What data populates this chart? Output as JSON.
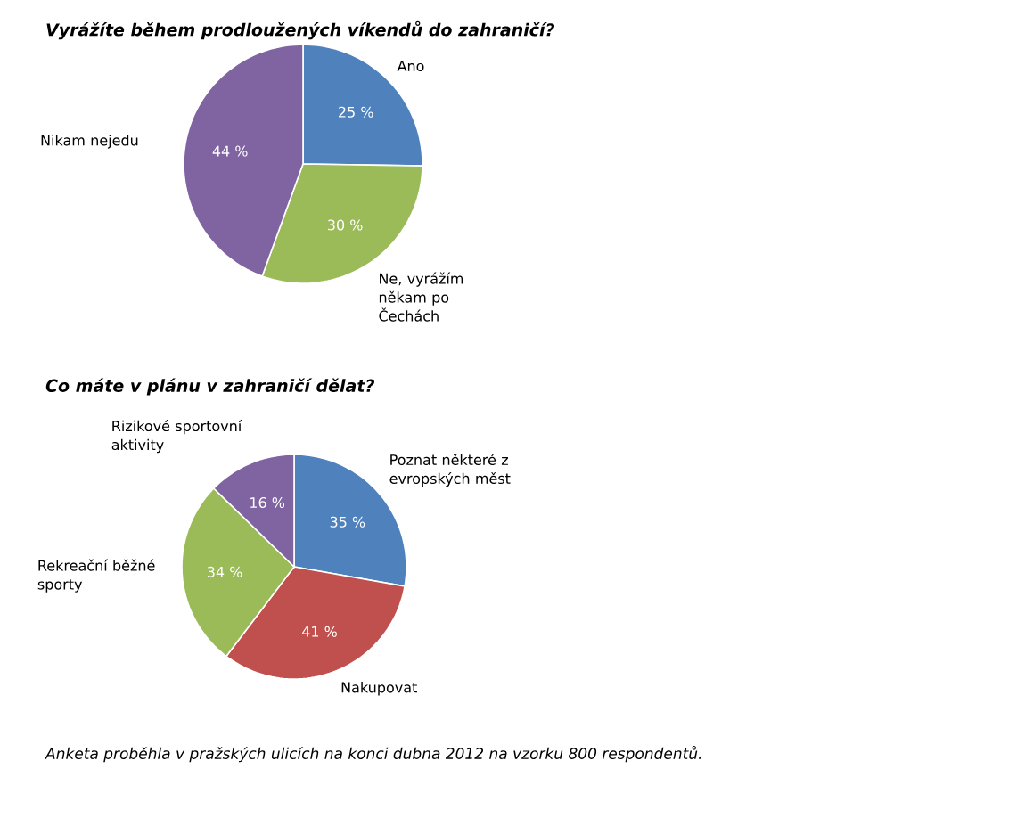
{
  "chart_data": [
    {
      "type": "pie",
      "title": "Vyrážíte během prodloužených víkendů  do zahraničí?",
      "categories": [
        "Ano",
        "Ne, vyrážím někam po Čechách",
        "Nikam nejedu"
      ],
      "values": [
        25,
        30,
        44
      ],
      "value_labels": [
        "25 %",
        "30 %",
        "44 %"
      ],
      "colors": [
        "#4f81bd",
        "#9bbb59",
        "#8064a2"
      ]
    },
    {
      "type": "pie",
      "title": "Co máte v plánu v zahraničí dělat?",
      "categories": [
        "Poznat některé z evropských měst",
        "Nakupovat",
        "Rekreační běžné sporty",
        "Rizikové sportovní aktivity"
      ],
      "values": [
        35,
        41,
        34,
        16
      ],
      "value_labels": [
        "35 %",
        "41 %",
        "34 %",
        "16 %"
      ],
      "colors": [
        "#4f81bd",
        "#c0504d",
        "#9bbb59",
        "#8064a2"
      ],
      "annotations": [
        "Anketa proběhla v pražských ulicích na konci dubna 2012 na vzorku 800 respondentů."
      ]
    }
  ]
}
